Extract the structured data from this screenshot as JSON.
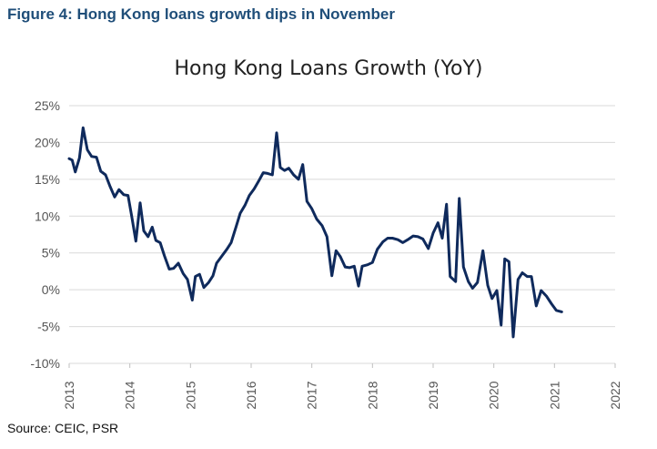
{
  "figure": {
    "title": "Figure 4: Hong Kong loans growth dips in November",
    "source": "Source: CEIC, PSR"
  },
  "colors": {
    "series": "#0f2a5c",
    "grid": "#d9d9d9",
    "title": "#1f4e79"
  },
  "chart_data": {
    "type": "line",
    "title": "Hong Kong Loans Growth (YoY)",
    "xlabel": "",
    "ylabel": "",
    "ylim": [
      -10,
      25
    ],
    "yticks": [
      25,
      20,
      15,
      10,
      5,
      0,
      -5,
      -10
    ],
    "ytick_labels": [
      "25%",
      "20%",
      "15%",
      "10%",
      "5%",
      "0%",
      "-5%",
      "-10%"
    ],
    "xlim": [
      2013.0,
      2022.0
    ],
    "xticks": [
      2013,
      2014,
      2015,
      2016,
      2017,
      2018,
      2019,
      2020,
      2021,
      2022
    ],
    "xtick_labels": [
      "2013",
      "2014",
      "2015",
      "2016",
      "2017",
      "2018",
      "2019",
      "2020",
      "2021",
      "2022"
    ],
    "grid": true,
    "legend": "none",
    "series": [
      {
        "points": [
          [
            2013.0,
            17.8
          ],
          [
            2013.05,
            17.6
          ],
          [
            2013.1,
            16.0
          ],
          [
            2013.17,
            17.9
          ],
          [
            2013.23,
            22.0
          ],
          [
            2013.3,
            19.0
          ],
          [
            2013.37,
            18.1
          ],
          [
            2013.45,
            18.0
          ],
          [
            2013.52,
            16.1
          ],
          [
            2013.6,
            15.6
          ],
          [
            2013.67,
            14.1
          ],
          [
            2013.75,
            12.6
          ],
          [
            2013.82,
            13.6
          ],
          [
            2013.9,
            12.9
          ],
          [
            2013.97,
            12.8
          ],
          [
            2014.03,
            10.0
          ],
          [
            2014.1,
            6.6
          ],
          [
            2014.17,
            11.8
          ],
          [
            2014.23,
            8.0
          ],
          [
            2014.3,
            7.2
          ],
          [
            2014.37,
            8.5
          ],
          [
            2014.43,
            6.7
          ],
          [
            2014.5,
            6.4
          ],
          [
            2014.57,
            4.6
          ],
          [
            2014.65,
            2.8
          ],
          [
            2014.72,
            2.9
          ],
          [
            2014.8,
            3.6
          ],
          [
            2014.88,
            2.2
          ],
          [
            2014.95,
            1.4
          ],
          [
            2015.03,
            -1.4
          ],
          [
            2015.08,
            1.8
          ],
          [
            2015.15,
            2.1
          ],
          [
            2015.22,
            0.3
          ],
          [
            2015.3,
            1.0
          ],
          [
            2015.37,
            1.9
          ],
          [
            2015.43,
            3.6
          ],
          [
            2015.52,
            4.6
          ],
          [
            2015.6,
            5.5
          ],
          [
            2015.67,
            6.4
          ],
          [
            2015.75,
            8.5
          ],
          [
            2015.82,
            10.4
          ],
          [
            2015.9,
            11.5
          ],
          [
            2015.97,
            12.8
          ],
          [
            2016.05,
            13.7
          ],
          [
            2016.12,
            14.7
          ],
          [
            2016.2,
            15.9
          ],
          [
            2016.27,
            15.8
          ],
          [
            2016.35,
            15.6
          ],
          [
            2016.42,
            21.3
          ],
          [
            2016.48,
            16.6
          ],
          [
            2016.55,
            16.2
          ],
          [
            2016.62,
            16.5
          ],
          [
            2016.7,
            15.6
          ],
          [
            2016.78,
            15.0
          ],
          [
            2016.85,
            17.0
          ],
          [
            2016.92,
            12.0
          ],
          [
            2017.0,
            11.0
          ],
          [
            2017.08,
            9.6
          ],
          [
            2017.17,
            8.7
          ],
          [
            2017.25,
            7.2
          ],
          [
            2017.33,
            1.9
          ],
          [
            2017.4,
            5.3
          ],
          [
            2017.47,
            4.5
          ],
          [
            2017.55,
            3.1
          ],
          [
            2017.62,
            3.0
          ],
          [
            2017.7,
            3.2
          ],
          [
            2017.77,
            0.5
          ],
          [
            2017.83,
            3.2
          ],
          [
            2017.92,
            3.4
          ],
          [
            2018.0,
            3.7
          ],
          [
            2018.08,
            5.5
          ],
          [
            2018.17,
            6.5
          ],
          [
            2018.25,
            7.0
          ],
          [
            2018.33,
            7.0
          ],
          [
            2018.42,
            6.8
          ],
          [
            2018.5,
            6.4
          ],
          [
            2018.58,
            6.8
          ],
          [
            2018.67,
            7.3
          ],
          [
            2018.75,
            7.2
          ],
          [
            2018.83,
            6.9
          ],
          [
            2018.92,
            5.6
          ],
          [
            2019.0,
            7.7
          ],
          [
            2019.08,
            9.1
          ],
          [
            2019.15,
            7.0
          ],
          [
            2019.22,
            11.6
          ],
          [
            2019.28,
            1.8
          ],
          [
            2019.37,
            1.1
          ],
          [
            2019.43,
            12.4
          ],
          [
            2019.5,
            3.1
          ],
          [
            2019.58,
            1.1
          ],
          [
            2019.65,
            0.2
          ],
          [
            2019.73,
            1.0
          ],
          [
            2019.82,
            5.3
          ],
          [
            2019.9,
            0.6
          ],
          [
            2019.97,
            -1.2
          ],
          [
            2020.05,
            -0.1
          ],
          [
            2020.12,
            -4.8
          ],
          [
            2020.18,
            4.2
          ],
          [
            2020.25,
            3.8
          ],
          [
            2020.32,
            -6.4
          ],
          [
            2020.4,
            1.4
          ],
          [
            2020.47,
            2.3
          ],
          [
            2020.55,
            1.8
          ],
          [
            2020.62,
            1.8
          ],
          [
            2020.7,
            -2.2
          ],
          [
            2020.78,
            -0.1
          ],
          [
            2020.87,
            -0.9
          ],
          [
            2020.95,
            -1.9
          ],
          [
            2021.03,
            -2.8
          ],
          [
            2021.12,
            -3.0
          ]
        ]
      }
    ]
  }
}
